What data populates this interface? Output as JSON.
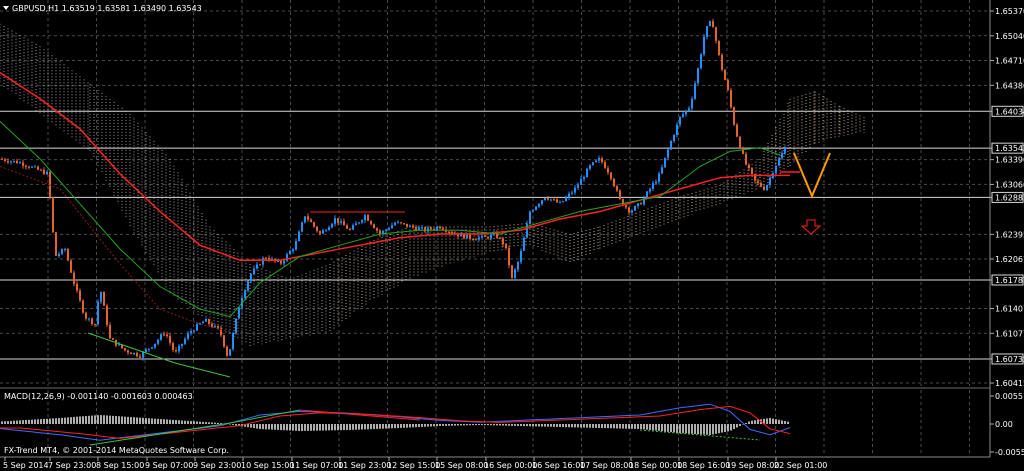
{
  "header": {
    "symbol_line": "GBPUSD,H1  1.63519 1.63581 1.63490 1.63543",
    "copyright": "FX-Trend MT4, © 2001-2014 MetaQuotes Software Corp."
  },
  "macd": {
    "label": "MACD(12,26,9) -0.001140 -0.001603 0.000463",
    "axis": [
      "0.005517",
      "0.00",
      "-0.005556"
    ]
  },
  "price_axis": {
    "ticks": [
      "1.65370",
      "1.65040",
      "1.64710",
      "1.64380",
      "1.64034",
      "1.63543",
      "1.63390",
      "1.63060",
      "1.62887",
      "1.62395",
      "1.62067",
      "1.61787",
      "1.61407",
      "1.61077",
      "1.60735",
      "1.60415"
    ],
    "highlighted": [
      "1.64034",
      "1.63543",
      "1.62887",
      "1.61787",
      "1.60735"
    ]
  },
  "time_axis": {
    "labels": [
      "5 Sep 2014",
      "7 Sep 23:00",
      "8 Sep 15:00",
      "9 Sep 07:00",
      "9 Sep 23:00",
      "10 Sep 15:00",
      "11 Sep 07:00",
      "11 Sep 23:00",
      "12 Sep 15:00",
      "15 Sep 08:00",
      "16 Sep 00:00",
      "16 Sep 16:00",
      "17 Sep 08:00",
      "18 Sep 00:00",
      "18 Sep 16:00",
      "19 Sep 08:00",
      "22 Sep 01:00"
    ]
  },
  "colors": {
    "background": "#000000",
    "grid": "#4a4a4a",
    "bull_candle": "#1e90ff",
    "bear_candle": "#e5622b",
    "ma_red": "#ff2020",
    "ma_green": "#1fa51f",
    "trend_line": "#ff2020",
    "projection": "#ff9900",
    "cloud_up": "#ffe0c0",
    "cloud_down": "#d0d0d0",
    "arrow": "#ff2020"
  },
  "icons": {
    "down_arrow": "hollow-down-arrow-icon",
    "projection": "v-projection-icon"
  }
}
